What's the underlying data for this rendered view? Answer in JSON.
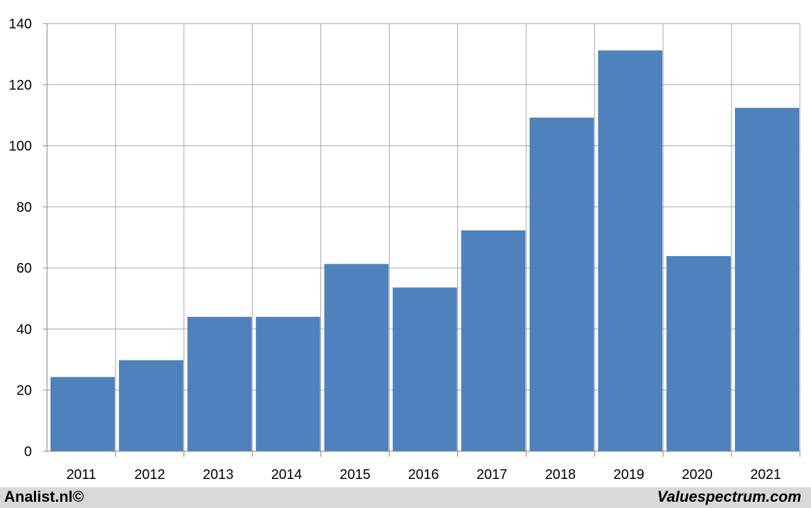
{
  "footer": {
    "left_text": "Analist.nl©",
    "right_text": "Valuespectrum.com"
  },
  "colors": {
    "bar": "#4f81bd",
    "grid": "#a6a6a6",
    "axis": "#808080",
    "background": "#ffffff",
    "footer_bg": "#d9d9d9"
  },
  "chart_data": {
    "type": "bar",
    "title": "",
    "xlabel": "",
    "ylabel": "",
    "categories": [
      "2011",
      "2012",
      "2013",
      "2014",
      "2015",
      "2016",
      "2017",
      "2018",
      "2019",
      "2020",
      "2021"
    ],
    "values": [
      24.3,
      29.8,
      44.0,
      44.0,
      61.3,
      53.6,
      72.3,
      109.2,
      131.2,
      63.9,
      112.4
    ],
    "ylim": [
      0,
      140
    ],
    "yticks": [
      0,
      20,
      40,
      60,
      80,
      100,
      120,
      140
    ],
    "grid": true,
    "legend": "none"
  }
}
